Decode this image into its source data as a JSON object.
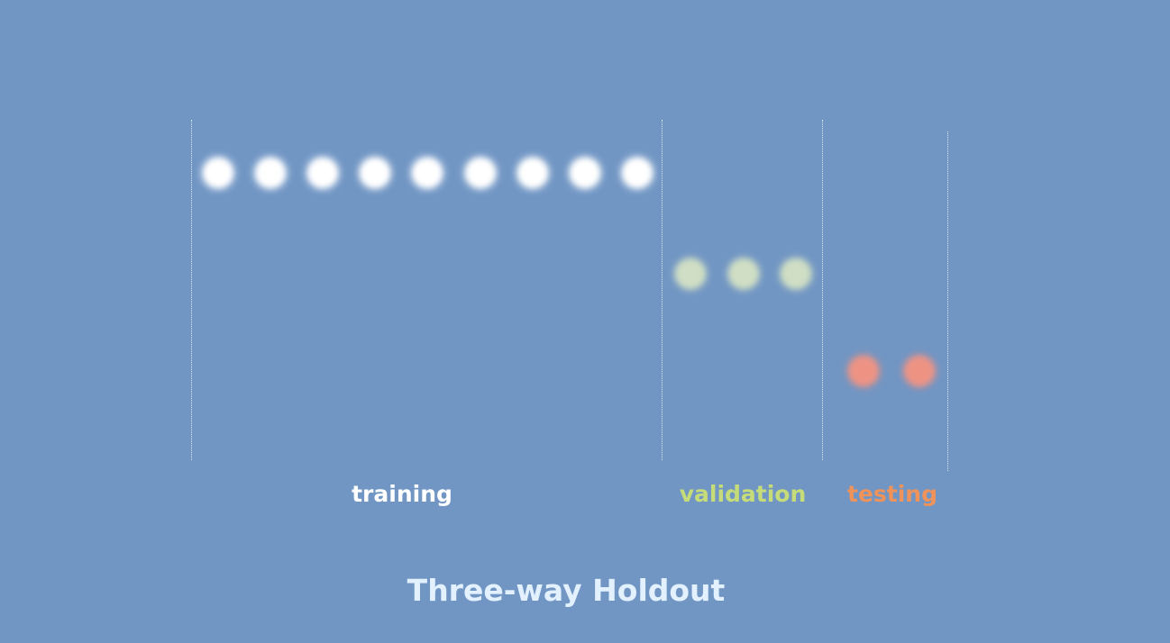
{
  "title": "Three-way Holdout",
  "splits": [
    {
      "key": "training",
      "label": "training",
      "count": 9,
      "color": "#ffffff",
      "label_color": "#ffffff"
    },
    {
      "key": "validation",
      "label": "validation",
      "count": 3,
      "color": "#cfdec4",
      "label_color": "#c6dc78"
    },
    {
      "key": "testing",
      "label": "testing",
      "count": 2,
      "color": "#ee9384",
      "label_color": "#f0935a"
    }
  ],
  "colors": {
    "background": "#7196c4",
    "title": "#e3f1ff",
    "divider": "#ffffff"
  }
}
